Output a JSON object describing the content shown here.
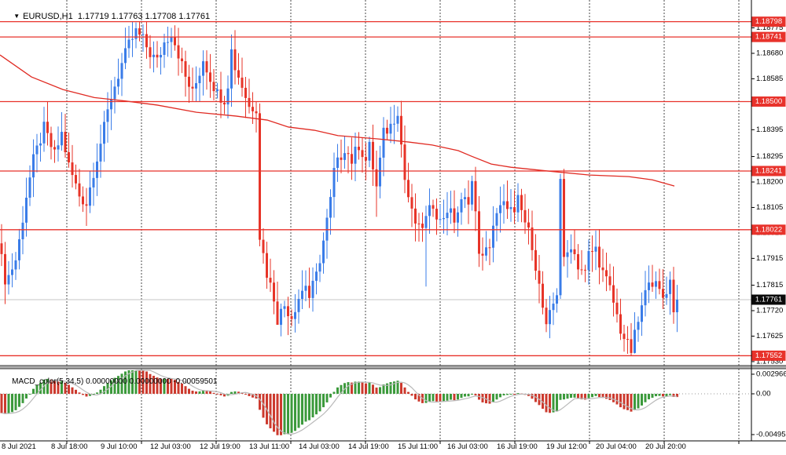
{
  "header": {
    "symbol_period": "EURUSD,H1",
    "ohlc": "1.17719 1.17763 1.17708 1.17761"
  },
  "icons": {
    "symbol_dropdown": "▼"
  },
  "indicator_panel": {
    "label": "MACD_color(5,34,5)",
    "values": "0.00000000 0.00000000 -0.00059501"
  },
  "colors": {
    "candle_up": "#3a7ce8",
    "candle_down": "#e73428",
    "level_red": "#e8322b",
    "ma_red": "#e02a22",
    "macd_up": "#3c9a3c",
    "macd_down": "#cc3a2e",
    "signal_gray": "#b9b9b9",
    "current_line": "#c4c4c4",
    "grid": "#4a4a4a",
    "badge_current_bg": "#0a0a0a",
    "badge_text": "#ffffff",
    "axis_text": "#000000",
    "separator": "#b0b0b0",
    "border": "#000000"
  },
  "chart_data": {
    "type": "candlestick",
    "symbol": "EURUSD",
    "timeframe": "H1",
    "title": "EURUSD,H1",
    "ohlc_current": {
      "open": 1.17719,
      "high": 1.17763,
      "low": 1.17708,
      "close": 1.17761
    },
    "bars": 192,
    "last_close": 1.17761,
    "price_axis": {
      "ticks": [
        1.18775,
        1.1868,
        1.18585,
        1.1849,
        1.18395,
        1.18295,
        1.182,
        1.18105,
        1.1801,
        1.17915,
        1.17815,
        1.1772,
        1.17625,
        1.1753
      ],
      "levels": [
        1.18798,
        1.18741,
        1.185,
        1.18241,
        1.18022,
        1.17552
      ],
      "current_price": 1.17761,
      "visible_range": {
        "min": 1.17515,
        "max": 1.18879
      }
    },
    "time_axis": {
      "labels": [
        "8 Jul 2021",
        "8 Jul 18:00",
        "9 Jul 10:00",
        "12 Jul 03:00",
        "12 Jul 19:00",
        "13 Jul 11:00",
        "14 Jul 03:00",
        "14 Jul 19:00",
        "15 Jul 11:00",
        "16 Jul 03:00",
        "16 Jul 19:00",
        "19 Jul 12:00",
        "20 Jul 04:00",
        "20 Jul 20:00"
      ]
    },
    "candles_path": [
      [
        0,
        1.1791
      ],
      [
        1,
        1.1784
      ],
      [
        2,
        1.1785
      ],
      [
        4,
        1.1791
      ],
      [
        5,
        1.1798
      ],
      [
        7,
        1.1815
      ],
      [
        9,
        1.1828
      ],
      [
        12,
        1.184
      ],
      [
        15,
        1.183
      ],
      [
        17,
        1.1838
      ],
      [
        19,
        1.1826
      ],
      [
        22,
        1.1815
      ],
      [
        24,
        1.1812
      ],
      [
        26,
        1.1824
      ],
      [
        29,
        1.184
      ],
      [
        31,
        1.1852
      ],
      [
        34,
        1.1864
      ],
      [
        36,
        1.1871
      ],
      [
        38,
        1.1876
      ],
      [
        40,
        1.1873
      ],
      [
        42,
        1.1868
      ],
      [
        44,
        1.1865
      ],
      [
        46,
        1.1872
      ],
      [
        48,
        1.1876
      ],
      [
        50,
        1.1868
      ],
      [
        52,
        1.1859
      ],
      [
        54,
        1.1853
      ],
      [
        56,
        1.1861
      ],
      [
        57,
        1.1866
      ],
      [
        59,
        1.1859
      ],
      [
        61,
        1.1853
      ],
      [
        63,
        1.1851
      ],
      [
        64,
        1.1857
      ],
      [
        65,
        1.1869
      ],
      [
        66,
        1.1863
      ],
      [
        68,
        1.1856
      ],
      [
        70,
        1.1848
      ],
      [
        72,
        1.1848
      ],
      [
        73,
        1.18
      ],
      [
        75,
        1.1786
      ],
      [
        77,
        1.1777
      ],
      [
        78,
        1.1769
      ],
      [
        80,
        1.1774
      ],
      [
        82,
        1.177
      ],
      [
        84,
        1.1777
      ],
      [
        86,
        1.1782
      ],
      [
        87,
        1.1777
      ],
      [
        89,
        1.1785
      ],
      [
        91,
        1.1798
      ],
      [
        93,
        1.1813
      ],
      [
        94,
        1.1824
      ],
      [
        97,
        1.1833
      ],
      [
        99,
        1.1828
      ],
      [
        101,
        1.1834
      ],
      [
        103,
        1.1828
      ],
      [
        104,
        1.1833
      ],
      [
        106,
        1.1818
      ],
      [
        108,
        1.1838
      ],
      [
        110,
        1.1841
      ],
      [
        112,
        1.1847
      ],
      [
        114,
        1.1821
      ],
      [
        116,
        1.1808
      ],
      [
        118,
        1.1802
      ],
      [
        120,
        1.1806
      ],
      [
        122,
        1.1812
      ],
      [
        124,
        1.1805
      ],
      [
        126,
        1.181
      ],
      [
        128,
        1.1806
      ],
      [
        130,
        1.1812
      ],
      [
        132,
        1.1814
      ],
      [
        133,
        1.182
      ],
      [
        135,
        1.1795
      ],
      [
        136,
        1.1791
      ],
      [
        138,
        1.1797
      ],
      [
        139,
        1.1804
      ],
      [
        141,
        1.181
      ],
      [
        143,
        1.1812
      ],
      [
        145,
        1.1807
      ],
      [
        146,
        1.1813
      ],
      [
        148,
        1.1805
      ],
      [
        150,
        1.1797
      ],
      [
        152,
        1.1781
      ],
      [
        154,
        1.1765
      ],
      [
        155,
        1.177
      ],
      [
        157,
        1.1779
      ],
      [
        158,
        1.1822
      ],
      [
        159,
        1.179
      ],
      [
        161,
        1.1797
      ],
      [
        163,
        1.1789
      ],
      [
        165,
        1.1786
      ],
      [
        166,
        1.1793
      ],
      [
        168,
        1.1795
      ],
      [
        170,
        1.1786
      ],
      [
        172,
        1.178
      ],
      [
        174,
        1.177
      ],
      [
        175,
        1.1765
      ],
      [
        177,
        1.1759
      ],
      [
        178,
        1.1757
      ],
      [
        180,
        1.1768
      ],
      [
        182,
        1.1778
      ],
      [
        183,
        1.1785
      ],
      [
        185,
        1.1781
      ],
      [
        187,
        1.1777
      ],
      [
        189,
        1.1783
      ],
      [
        190,
        1.1773
      ],
      [
        191,
        1.17761
      ]
    ],
    "wick_overrides": {
      "38": {
        "high": 1.18795
      },
      "48": {
        "high": 1.18775
      },
      "65": {
        "high": 1.1875
      },
      "73": {
        "low": 1.1796
      },
      "78": {
        "low": 1.1768
      },
      "106": {
        "low": 1.1807
      },
      "120": {
        "low": 1.1781
      },
      "154": {
        "low": 1.1764
      },
      "158": {
        "high": 1.1823
      },
      "178": {
        "low": 1.17552
      },
      "179": {
        "low": 1.1756
      }
    },
    "ma_path": [
      [
        0,
        1.18674
      ],
      [
        40,
        1.18592
      ],
      [
        80,
        1.18545
      ],
      [
        120,
        1.18515
      ],
      [
        160,
        1.18502
      ],
      [
        200,
        1.18487
      ],
      [
        250,
        1.1846
      ],
      [
        300,
        1.18446
      ],
      [
        340,
        1.18431
      ],
      [
        367,
        1.18405
      ],
      [
        400,
        1.18393
      ],
      [
        430,
        1.18373
      ],
      [
        480,
        1.18361
      ],
      [
        520,
        1.18349
      ],
      [
        550,
        1.18338
      ],
      [
        583,
        1.18317
      ],
      [
        600,
        1.18296
      ],
      [
        625,
        1.18267
      ],
      [
        650,
        1.18255
      ],
      [
        700,
        1.1824
      ],
      [
        750,
        1.18226
      ],
      [
        800,
        1.1822
      ],
      [
        830,
        1.18208
      ],
      [
        858,
        1.18185
      ]
    ],
    "macd": {
      "name": "MACD_color",
      "fast": 5,
      "slow": 34,
      "signal": 5,
      "display_values": [
        0.0,
        0.0,
        -0.00059501
      ],
      "ticks": [
        {
          "label": "0.002966",
          "value": 0.002966
        },
        {
          "label": "0.00",
          "value": 0.0
        },
        {
          "label": "-0.00495",
          "value": -0.00495
        }
      ],
      "visible_range": {
        "min": -0.0052,
        "max": 0.0031
      }
    }
  }
}
